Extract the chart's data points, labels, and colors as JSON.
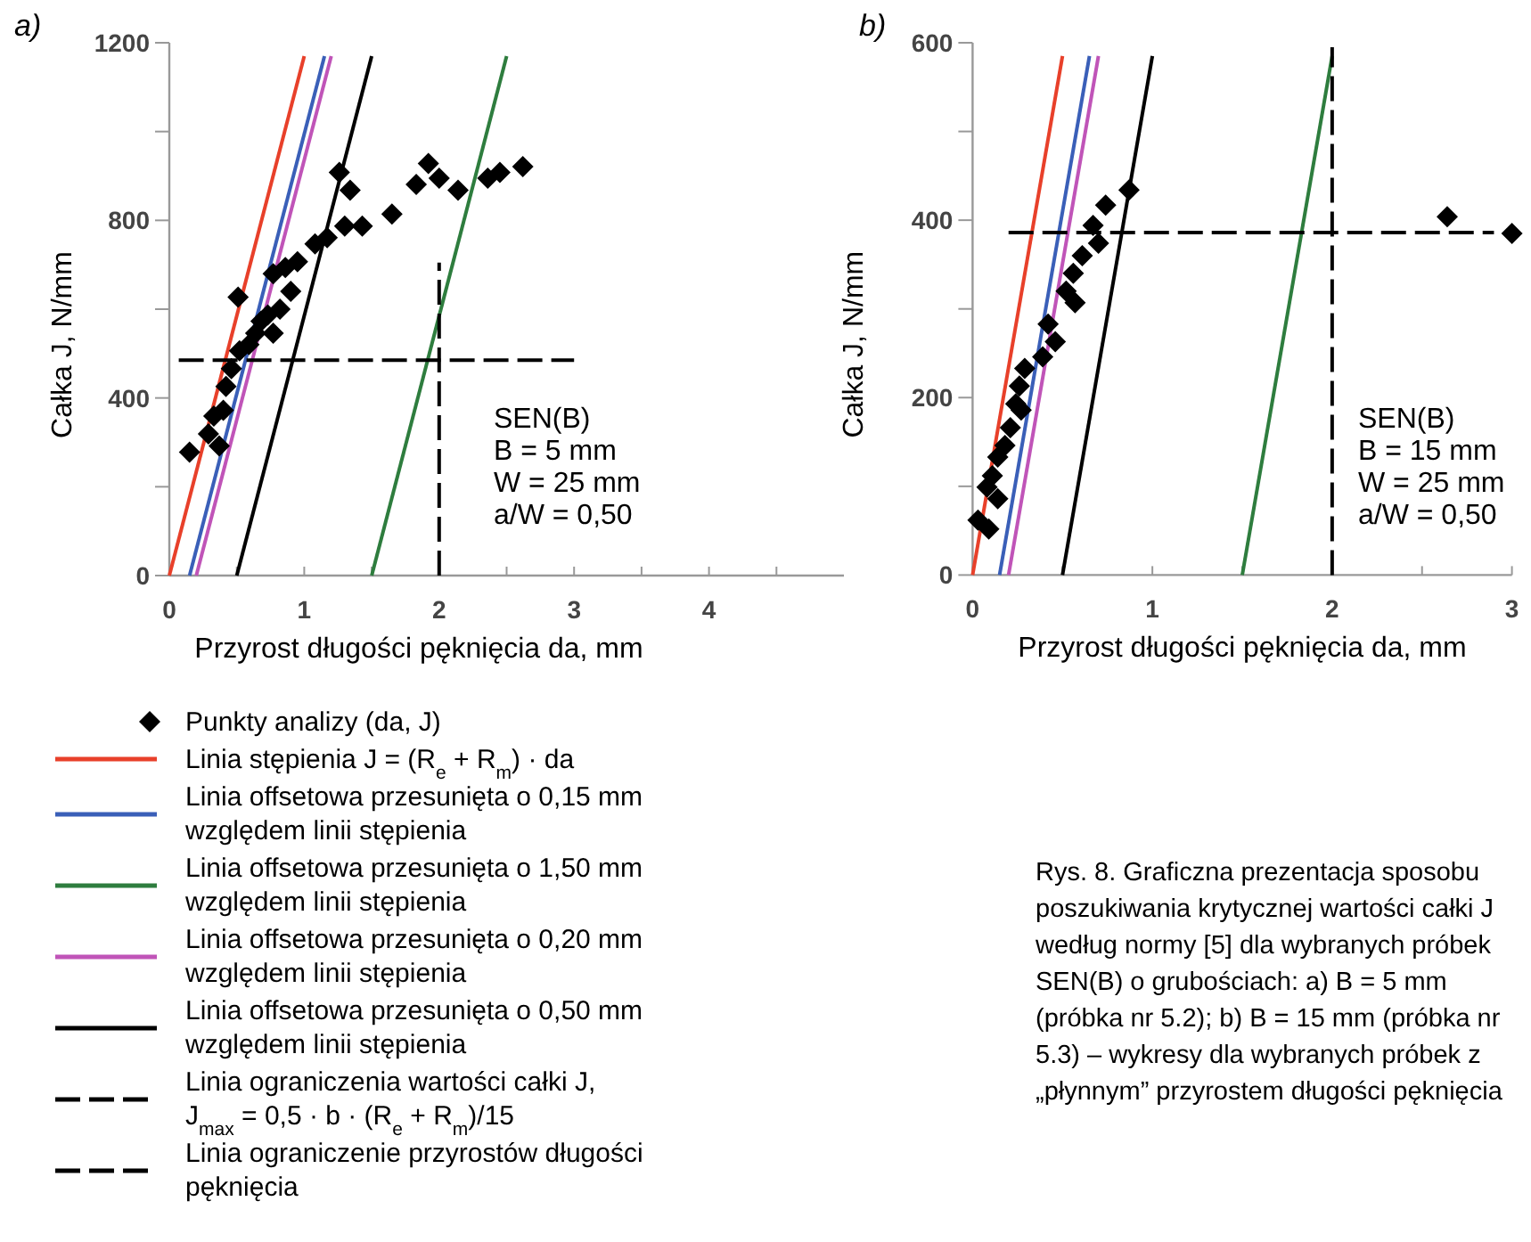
{
  "chart_data": [
    {
      "type": "scatter",
      "title": "a)",
      "xlabel": "Przyrost długości pęknięcia da, mm",
      "ylabel": "Całka J, N/mm",
      "xlim": [
        0,
        5
      ],
      "xticks": [
        0,
        {
          "value": 0.5,
          "label": null
        },
        1,
        {
          "value": 1.5,
          "label": null
        },
        2,
        {
          "value": 2.5,
          "label": null
        },
        3,
        {
          "value": 3.5,
          "label": null
        },
        4,
        {
          "value": 4.5,
          "label": null
        }
      ],
      "ylim": [
        0,
        1200
      ],
      "yticks": [
        0,
        {
          "value": 200,
          "label": null
        },
        400,
        {
          "value": 600,
          "label": null
        },
        800,
        {
          "value": 1000,
          "label": null
        },
        1200
      ],
      "legend": "bottom",
      "annotations": [
        "SEN(B)",
        "B = 5 mm",
        "W = 25 mm",
        "a/W = 0,50"
      ],
      "series": [
        {
          "name": "Punkty analizy (da, J)",
          "type": "scatter",
          "marker": "diamond",
          "color": "#000000",
          "x": [
            0.15,
            0.29,
            0.33,
            0.37,
            0.4,
            0.42,
            0.46,
            0.51,
            0.52,
            0.59,
            0.64,
            0.68,
            0.73,
            0.77,
            0.77,
            0.82,
            0.86,
            0.9,
            0.95,
            1.08,
            1.17,
            1.26,
            1.3,
            1.34,
            1.43,
            1.65,
            1.83,
            1.92,
            2.0,
            2.14,
            2.36,
            2.45,
            2.62
          ],
          "values": [
            278,
            319,
            359,
            292,
            372,
            426,
            466,
            627,
            506,
            520,
            546,
            573,
            587,
            546,
            680,
            600,
            694,
            640,
            707,
            747,
            761,
            908,
            787,
            868,
            787,
            814,
            881,
            928,
            895,
            868,
            895,
            908,
            921
          ]
        },
        {
          "name": "Linia stępienia J = (R$_{e}$ + R$_{m}$) · da",
          "type": "line",
          "line_style": "solid",
          "color": "#e8402a",
          "x": [
            0,
            1.0
          ],
          "values": [
            0,
            1170
          ]
        },
        {
          "name": "Linia offsetowa przesunięta o 0,15 mm względem linii stępienia",
          "type": "line",
          "line_style": "solid",
          "color": "#3a5fb8",
          "x": [
            0.15,
            1.15
          ],
          "values": [
            0,
            1170
          ]
        },
        {
          "name": "Linia offsetowa przesunięta o 1,50 mm względem linii stępienia",
          "type": "line",
          "line_style": "solid",
          "color": "#2e7d3e",
          "x": [
            1.5,
            2.5
          ],
          "values": [
            0,
            1170
          ]
        },
        {
          "name": "Linia offsetowa przesunięta o 0,20 mm względem linii stępienia",
          "type": "line",
          "line_style": "solid",
          "color": "#c054b8",
          "x": [
            0.2,
            1.2
          ],
          "values": [
            0,
            1170
          ]
        },
        {
          "name": "Linia offsetowa przesunięta o 0,50 mm względem linii stępienia",
          "type": "line",
          "line_style": "solid",
          "color": "#000000",
          "x": [
            0.5,
            1.5
          ],
          "values": [
            0,
            1170
          ]
        },
        {
          "name": "Linia ograniczenia wartości całki J, J$_{max}$ = 0,5 · b · (R$_{e}$ + R$_{m}$)/15",
          "type": "line",
          "line_style": "dashed",
          "color": "#000000",
          "x": [
            0.07,
            3.0
          ],
          "values": [
            485,
            485
          ]
        },
        {
          "name": "Linia ograniczenie przyrostów długości pęknięcia",
          "type": "line",
          "line_style": "dashed",
          "color": "#000000",
          "x": [
            2,
            2
          ],
          "values": [
            0,
            705
          ]
        }
      ]
    },
    {
      "type": "scatter",
      "title": "b)",
      "xlabel": "Przyrost długości pęknięcia da, mm",
      "ylabel": "Całka J, N/mm",
      "xlim": [
        0,
        3
      ],
      "xticks": [
        0,
        {
          "value": 0.5,
          "label": null
        },
        1,
        {
          "value": 1.5,
          "label": null
        },
        2,
        {
          "value": 2.5,
          "label": null
        },
        3
      ],
      "ylim": [
        0,
        600
      ],
      "yticks": [
        0,
        {
          "value": 100,
          "label": null
        },
        200,
        {
          "value": 300,
          "label": null
        },
        400,
        {
          "value": 500,
          "label": null
        },
        600
      ],
      "annotations": [
        "SEN(B)",
        "B = 15 mm",
        "W = 25 mm",
        "a/W = 0,50",
        "Rys. 8. Graficzna prezentacja sposobu poszukiwania krytycznej wartości całki J według normy [5] dla wybranych próbek SEN(B) o grubościach: a) B = 5 mm (próbka nr 5.2); b) B = 15 mm (próbka nr 5.3) – wykresy dla wybranych próbek z „płynnym” przyrostem długości pęknięcia"
      ],
      "series": [
        {
          "type": "scatter",
          "marker": "diamond",
          "color": "#000000",
          "x": [
            0.03,
            0.09,
            0.08,
            0.11,
            0.14,
            0.14,
            0.18,
            0.21,
            0.24,
            0.26,
            0.27,
            0.29,
            0.39,
            0.42,
            0.46,
            0.52,
            0.56,
            0.57,
            0.61,
            0.67,
            0.7,
            0.74,
            0.87,
            2.64,
            3.0
          ],
          "values": [
            62,
            52,
            99,
            112,
            86,
            133,
            146,
            166,
            193,
            213,
            186,
            233,
            246,
            283,
            263,
            320,
            340,
            307,
            360,
            394,
            374,
            417,
            434,
            404,
            385
          ]
        },
        {
          "type": "line",
          "line_style": "solid",
          "color": "#e8402a",
          "x": [
            0,
            0.5
          ],
          "values": [
            0,
            585
          ]
        },
        {
          "type": "line",
          "line_style": "solid",
          "color": "#3a5fb8",
          "x": [
            0.15,
            0.65
          ],
          "values": [
            0,
            585
          ]
        },
        {
          "type": "line",
          "line_style": "solid",
          "color": "#2e7d3e",
          "x": [
            1.5,
            2.0
          ],
          "values": [
            0,
            585
          ]
        },
        {
          "type": "line",
          "line_style": "solid",
          "color": "#c054b8",
          "x": [
            0.2,
            0.7
          ],
          "values": [
            0,
            585
          ]
        },
        {
          "type": "line",
          "line_style": "solid",
          "color": "#000000",
          "x": [
            0.5,
            1.0
          ],
          "values": [
            0,
            585
          ]
        },
        {
          "type": "line",
          "line_style": "dashed",
          "color": "#000000",
          "x": [
            0.2,
            2.9
          ],
          "values": [
            386,
            386
          ]
        },
        {
          "type": "line",
          "line_style": "dashed",
          "color": "#000000",
          "x": [
            2,
            2
          ],
          "values": [
            0,
            595
          ]
        }
      ]
    }
  ]
}
